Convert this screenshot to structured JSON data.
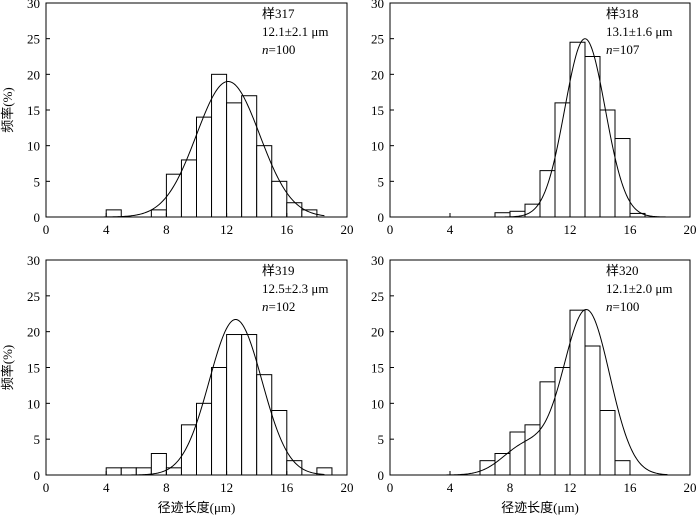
{
  "chart_data": [
    {
      "type": "bar",
      "sample": "样317",
      "stat": "12.1±2.1 μm",
      "n_label": "n",
      "n_value": "=100",
      "ylabel": "频率(%)",
      "xlabel": "",
      "xlim": [
        0,
        20
      ],
      "ylim": [
        0,
        30
      ],
      "x_ticks": [
        "0",
        "4",
        "8",
        "12",
        "16",
        "20"
      ],
      "y_ticks": [
        "0",
        "5",
        "10",
        "15",
        "20",
        "25",
        "30"
      ],
      "bin_width": 1,
      "bins": [
        {
          "x": 4,
          "value": 1
        },
        {
          "x": 7,
          "value": 1
        },
        {
          "x": 8,
          "value": 6
        },
        {
          "x": 9,
          "value": 8
        },
        {
          "x": 10,
          "value": 14
        },
        {
          "x": 11,
          "value": 20
        },
        {
          "x": 12,
          "value": 16
        },
        {
          "x": 13,
          "value": 17
        },
        {
          "x": 14,
          "value": 10
        },
        {
          "x": 15,
          "value": 5
        },
        {
          "x": 16,
          "value": 2
        },
        {
          "x": 17,
          "value": 1
        }
      ],
      "curve": {
        "mean": 12.1,
        "sd": 2.1,
        "peak": 19
      }
    },
    {
      "type": "bar",
      "sample": "样318",
      "stat": "13.1±1.6 μm",
      "n_label": "n",
      "n_value": "=107",
      "ylabel": "",
      "xlabel": "",
      "xlim": [
        0,
        20
      ],
      "ylim": [
        0,
        30
      ],
      "x_ticks": [
        "0",
        "4",
        "8",
        "12",
        "16",
        "20"
      ],
      "y_ticks": [
        "0",
        "5",
        "10",
        "15",
        "20",
        "25",
        "30"
      ],
      "bin_width": 1,
      "bins": [
        {
          "x": 7,
          "value": 0.6
        },
        {
          "x": 8,
          "value": 0.8
        },
        {
          "x": 9,
          "value": 1.8
        },
        {
          "x": 10,
          "value": 6.5
        },
        {
          "x": 11,
          "value": 16
        },
        {
          "x": 12,
          "value": 24.5
        },
        {
          "x": 13,
          "value": 22.5
        },
        {
          "x": 14,
          "value": 15
        },
        {
          "x": 15,
          "value": 11
        },
        {
          "x": 16,
          "value": 0.5
        }
      ],
      "curve": {
        "mean": 13.0,
        "sd": 1.35,
        "peak": 25
      }
    },
    {
      "type": "bar",
      "sample": "样319",
      "stat": "12.5±2.3 μm",
      "n_label": "n",
      "n_value": "=102",
      "ylabel": "频率(%)",
      "xlabel": "径迹长度(μm)",
      "xlim": [
        0,
        20
      ],
      "ylim": [
        0,
        30
      ],
      "x_ticks": [
        "0",
        "4",
        "8",
        "12",
        "16",
        "20"
      ],
      "y_ticks": [
        "0",
        "5",
        "10",
        "15",
        "20",
        "25",
        "30"
      ],
      "bin_width": 1,
      "bins": [
        {
          "x": 4,
          "value": 1
        },
        {
          "x": 5,
          "value": 1
        },
        {
          "x": 6,
          "value": 1
        },
        {
          "x": 7,
          "value": 3
        },
        {
          "x": 8,
          "value": 1
        },
        {
          "x": 9,
          "value": 7
        },
        {
          "x": 10,
          "value": 10
        },
        {
          "x": 11,
          "value": 15
        },
        {
          "x": 12,
          "value": 19.6
        },
        {
          "x": 13,
          "value": 19.6
        },
        {
          "x": 14,
          "value": 14
        },
        {
          "x": 15,
          "value": 9
        },
        {
          "x": 16,
          "value": 2
        },
        {
          "x": 18,
          "value": 1
        }
      ],
      "curve": {
        "mean": 12.6,
        "sd": 1.75,
        "peak": 21.7
      }
    },
    {
      "type": "bar",
      "sample": "样320",
      "stat": "12.1±2.0 μm",
      "n_label": "n",
      "n_value": "=100",
      "ylabel": "",
      "xlabel": "径迹长度(μm)",
      "xlim": [
        0,
        20
      ],
      "ylim": [
        0,
        30
      ],
      "x_ticks": [
        "0",
        "4",
        "8",
        "12",
        "16",
        "20"
      ],
      "y_ticks": [
        "0",
        "5",
        "10",
        "15",
        "20",
        "25",
        "30"
      ],
      "bin_width": 1,
      "bins": [
        {
          "x": 6,
          "value": 2
        },
        {
          "x": 7,
          "value": 3
        },
        {
          "x": 8,
          "value": 1
        },
        {
          "x": 8,
          "value": 6
        },
        {
          "x": 9,
          "value": 7
        },
        {
          "x": 10,
          "value": 13
        },
        {
          "x": 11,
          "value": 15
        },
        {
          "x": 12,
          "value": 23
        },
        {
          "x": 13,
          "value": 18
        },
        {
          "x": 14,
          "value": 9
        },
        {
          "x": 15,
          "value": 2
        }
      ],
      "curve": {
        "mean": 13.1,
        "sd": 1.55,
        "peak": 23,
        "shoulder": {
          "mean": 9.0,
          "sd": 1.5,
          "peak": 4
        }
      }
    }
  ]
}
